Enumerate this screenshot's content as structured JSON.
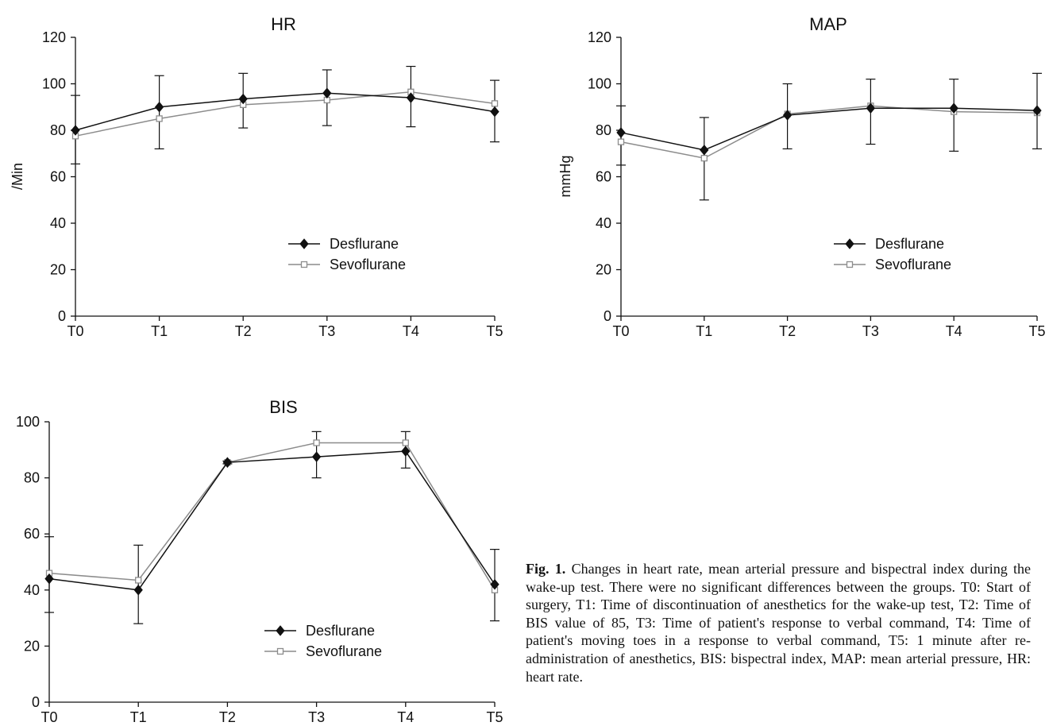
{
  "caption": {
    "label": "Fig. 1.",
    "text": "Changes in heart rate, mean arterial pressure and bispectral index during the wake-up test. There were no significant differences between the groups. T0: Start of surgery, T1: Time of discontinuation of anesthetics for the wake-up test, T2: Time of BIS value of 85, T3: Time of patient's response to verbal command, T4: Time of patient's moving toes in a response to verbal command, T5: 1 minute after re-administration of anesthetics, BIS: bispectral index, MAP: mean arterial pressure, HR: heart rate."
  },
  "colors": {
    "desflurane": "#111111",
    "sevoflurane": "#8c8c8c",
    "axis": "#111111"
  },
  "chart_data": [
    {
      "id": "hr",
      "type": "line",
      "title": "HR",
      "xlabel": "",
      "ylabel": "/Min",
      "categories": [
        "T0",
        "T1",
        "T2",
        "T3",
        "T4",
        "T5"
      ],
      "ylim": [
        0,
        120
      ],
      "yticks": [
        0,
        20,
        40,
        60,
        80,
        100,
        120
      ],
      "legend_position": "center-right",
      "series": [
        {
          "name": "Desflurane",
          "marker": "filled-diamond",
          "values": [
            80,
            90,
            93.5,
            96,
            94,
            88
          ],
          "err_low": [
            65.5,
            72,
            81,
            82,
            81.5,
            75
          ],
          "err_high": [
            95,
            103.5,
            104.5,
            106,
            107.5,
            101.5
          ]
        },
        {
          "name": "Sevoflurane",
          "marker": "open-square",
          "values": [
            77.5,
            85,
            91,
            93,
            96.5,
            91.5
          ],
          "err_low": [
            65.5,
            72,
            81,
            82,
            81.5,
            75
          ],
          "err_high": [
            95,
            103.5,
            104.5,
            106,
            107.5,
            101.5
          ]
        }
      ]
    },
    {
      "id": "map",
      "type": "line",
      "title": "MAP",
      "xlabel": "",
      "ylabel": "mmHg",
      "categories": [
        "T0",
        "T1",
        "T2",
        "T3",
        "T4",
        "T5"
      ],
      "ylim": [
        0,
        120
      ],
      "yticks": [
        0,
        20,
        40,
        60,
        80,
        100,
        120
      ],
      "legend_position": "center-right",
      "series": [
        {
          "name": "Desflurane",
          "marker": "filled-diamond",
          "values": [
            79,
            71.5,
            86.5,
            89.5,
            89.5,
            88.5
          ],
          "err_low": [
            65,
            50,
            72,
            74,
            71,
            72
          ],
          "err_high": [
            90.5,
            85.5,
            100,
            102,
            102,
            104.5
          ]
        },
        {
          "name": "Sevoflurane",
          "marker": "open-square",
          "values": [
            75,
            68,
            87,
            90.5,
            88,
            87.5
          ],
          "err_low": [
            65,
            50,
            72,
            74,
            71,
            72
          ],
          "err_high": [
            90.5,
            85.5,
            100,
            102,
            102,
            104.5
          ]
        }
      ]
    },
    {
      "id": "bis",
      "type": "line",
      "title": "BIS",
      "xlabel": "",
      "ylabel": "",
      "categories": [
        "T0",
        "T1",
        "T2",
        "T3",
        "T4",
        "T5"
      ],
      "ylim": [
        0,
        100
      ],
      "yticks": [
        0,
        20,
        40,
        60,
        80,
        100
      ],
      "legend_position": "bottom-center",
      "series": [
        {
          "name": "Desflurane",
          "marker": "filled-diamond",
          "values": [
            44,
            40,
            85.5,
            87.5,
            89.5,
            42
          ],
          "err_low": [
            32,
            28,
            85,
            80,
            83.5,
            29
          ],
          "err_high": [
            59,
            56,
            86,
            96.5,
            96.5,
            54.5
          ]
        },
        {
          "name": "Sevoflurane",
          "marker": "open-square",
          "values": [
            46,
            43.5,
            85.5,
            92.5,
            92.5,
            40
          ],
          "err_low": [
            32,
            28,
            85,
            80,
            83.5,
            29
          ],
          "err_high": [
            59,
            56,
            86,
            96.5,
            96.5,
            54.5
          ]
        }
      ]
    }
  ]
}
